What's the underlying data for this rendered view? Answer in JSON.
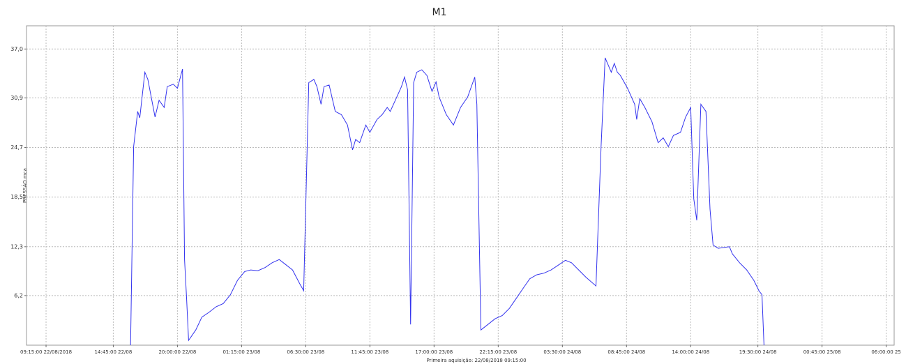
{
  "chart_data": {
    "type": "line",
    "title": "M1",
    "y_label": "PRESSÃO mca",
    "subtitle": "Primeira aquisição: 22/08/2018 09:15:00",
    "color": "#3333ee",
    "grid": true,
    "ylim": [
      0,
      39.9
    ],
    "yticks": [
      {
        "value": 6.2,
        "label": "6,2"
      },
      {
        "value": 12.3,
        "label": "12,3"
      },
      {
        "value": 18.5,
        "label": "18,5"
      },
      {
        "value": 24.7,
        "label": "24,7"
      },
      {
        "value": 30.9,
        "label": "30,9"
      },
      {
        "value": 37,
        "label": "37,0"
      }
    ],
    "xlim": [
      "2018-08-22T07:39",
      "2018-08-25T06:39"
    ],
    "xticks": [
      {
        "value": "2018-08-22T09:15",
        "label": "09:15:00 22/08/2018"
      },
      {
        "value": "2018-08-22T14:45",
        "label": "14:45:00 22/08"
      },
      {
        "value": "2018-08-22T20:00",
        "label": "20:00:00 22/08"
      },
      {
        "value": "2018-08-23T01:15",
        "label": "01:15:00 23/08"
      },
      {
        "value": "2018-08-23T06:30",
        "label": "06:30:00 23/08"
      },
      {
        "value": "2018-08-23T11:45",
        "label": "11:45:00 23/08"
      },
      {
        "value": "2018-08-23T17:00",
        "label": "17:00:00 23/08"
      },
      {
        "value": "2018-08-23T22:15",
        "label": "22:15:00 23/08"
      },
      {
        "value": "2018-08-24T03:30",
        "label": "03:30:00 24/08"
      },
      {
        "value": "2018-08-24T08:45",
        "label": "08:45:00 24/08"
      },
      {
        "value": "2018-08-24T14:00",
        "label": "14:00:00 24/08"
      },
      {
        "value": "2018-08-24T19:30",
        "label": "19:30:00 24/08"
      },
      {
        "value": "2018-08-25T00:45",
        "label": "00:45:00 25/08"
      },
      {
        "value": "2018-08-25T06:00",
        "label": "06:00:00 25"
      }
    ],
    "x": [
      "2018-08-22T16:10",
      "2018-08-22T16:25",
      "2018-08-22T16:45",
      "2018-08-22T16:55",
      "2018-08-22T17:20",
      "2018-08-22T17:35",
      "2018-08-22T18:10",
      "2018-08-22T18:30",
      "2018-08-22T18:55",
      "2018-08-22T19:10",
      "2018-08-22T19:40",
      "2018-08-22T20:00",
      "2018-08-22T20:25",
      "2018-08-22T20:35",
      "2018-08-22T20:45",
      "2018-08-22T20:55",
      "2018-08-22T21:30",
      "2018-08-22T22:00",
      "2018-08-22T22:35",
      "2018-08-22T23:10",
      "2018-08-22T23:45",
      "2018-08-23T00:20",
      "2018-08-23T00:55",
      "2018-08-23T01:30",
      "2018-08-23T02:00",
      "2018-08-23T02:35",
      "2018-08-23T03:10",
      "2018-08-23T03:45",
      "2018-08-23T04:20",
      "2018-08-23T04:55",
      "2018-08-23T05:25",
      "2018-08-23T06:00",
      "2018-08-23T06:20",
      "2018-08-23T06:45",
      "2018-08-23T07:10",
      "2018-08-23T07:25",
      "2018-08-23T07:45",
      "2018-08-23T08:00",
      "2018-08-23T08:25",
      "2018-08-23T08:55",
      "2018-08-23T09:25",
      "2018-08-23T09:55",
      "2018-08-23T10:20",
      "2018-08-23T10:35",
      "2018-08-23T10:55",
      "2018-08-23T11:25",
      "2018-08-23T11:45",
      "2018-08-23T12:20",
      "2018-08-23T12:45",
      "2018-08-23T13:10",
      "2018-08-23T13:25",
      "2018-08-23T13:50",
      "2018-08-23T14:20",
      "2018-08-23T14:35",
      "2018-08-23T14:50",
      "2018-08-23T15:05",
      "2018-08-23T15:20",
      "2018-08-23T15:35",
      "2018-08-23T16:00",
      "2018-08-23T16:25",
      "2018-08-23T16:50",
      "2018-08-23T17:10",
      "2018-08-23T17:25",
      "2018-08-23T18:00",
      "2018-08-23T18:35",
      "2018-08-23T19:10",
      "2018-08-23T19:45",
      "2018-08-23T20:20",
      "2018-08-23T20:30",
      "2018-08-23T20:50",
      "2018-08-23T21:25",
      "2018-08-23T22:00",
      "2018-08-23T22:35",
      "2018-08-23T23:10",
      "2018-08-23T23:45",
      "2018-08-24T00:20",
      "2018-08-24T00:50",
      "2018-08-24T01:25",
      "2018-08-24T02:00",
      "2018-08-24T02:35",
      "2018-08-24T03:10",
      "2018-08-24T03:45",
      "2018-08-24T04:15",
      "2018-08-24T04:50",
      "2018-08-24T05:25",
      "2018-08-24T06:15",
      "2018-08-24T06:40",
      "2018-08-24T07:00",
      "2018-08-24T07:15",
      "2018-08-24T07:30",
      "2018-08-24T07:45",
      "2018-08-24T08:00",
      "2018-08-24T08:15",
      "2018-08-24T08:50",
      "2018-08-24T09:25",
      "2018-08-24T09:35",
      "2018-08-24T09:50",
      "2018-08-24T10:15",
      "2018-08-24T10:50",
      "2018-08-24T11:20",
      "2018-08-24T11:45",
      "2018-08-24T12:10",
      "2018-08-24T12:35",
      "2018-08-24T13:10",
      "2018-08-24T13:35",
      "2018-08-24T14:00",
      "2018-08-24T14:15",
      "2018-08-24T14:30",
      "2018-08-24T14:50",
      "2018-08-24T15:15",
      "2018-08-24T15:35",
      "2018-08-24T15:50",
      "2018-08-24T16:15",
      "2018-08-24T17:10",
      "2018-08-24T17:25",
      "2018-08-24T18:00",
      "2018-08-24T18:35",
      "2018-08-24T19:10",
      "2018-08-24T19:35",
      "2018-08-24T19:50",
      "2018-08-24T20:00"
    ],
    "values": [
      0,
      24.8,
      29.2,
      28.4,
      34.1,
      33.2,
      28.5,
      30.6,
      29.7,
      32.3,
      32.6,
      32.1,
      34.5,
      10.7,
      5.9,
      0.6,
      1.9,
      3.5,
      4.1,
      4.8,
      5.2,
      6.3,
      8.1,
      9.2,
      9.4,
      9.3,
      9.7,
      10.3,
      10.7,
      10.0,
      9.4,
      7.7,
      6.8,
      32.8,
      33.2,
      32.3,
      30.1,
      32.3,
      32.5,
      29.2,
      28.8,
      27.5,
      24.4,
      25.7,
      25.3,
      27.5,
      26.6,
      28.2,
      28.8,
      29.7,
      29.2,
      30.6,
      32.3,
      33.5,
      31.9,
      2.6,
      32.8,
      34.1,
      34.4,
      33.7,
      31.7,
      32.9,
      31.0,
      28.8,
      27.5,
      29.7,
      31.0,
      33.5,
      30.1,
      1.9,
      2.6,
      3.3,
      3.7,
      4.6,
      5.9,
      7.2,
      8.3,
      8.8,
      9.0,
      9.4,
      10.0,
      10.6,
      10.3,
      9.4,
      8.5,
      7.4,
      24.8,
      35.9,
      35.0,
      34.1,
      35.2,
      34.1,
      33.7,
      32.1,
      30.1,
      28.2,
      30.8,
      29.7,
      27.9,
      25.3,
      25.9,
      24.8,
      26.2,
      26.6,
      28.5,
      29.7,
      18.3,
      15.6,
      30.1,
      29.2,
      17.0,
      12.5,
      12.1,
      12.3,
      11.4,
      10.3,
      9.4,
      8.1,
      6.8,
      6.3,
      0
    ]
  }
}
